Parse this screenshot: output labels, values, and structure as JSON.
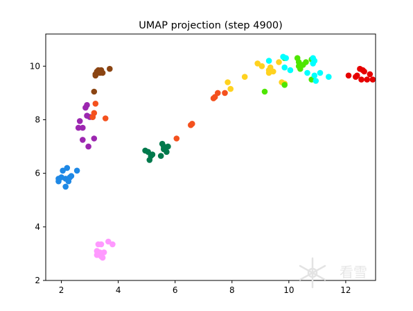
{
  "chart_data": {
    "type": "scatter",
    "title": "UMAP projection (step 4900)",
    "xlabel": "",
    "ylabel": "",
    "xlim": [
      1.45,
      13.05
    ],
    "ylim": [
      2.0,
      11.2
    ],
    "xticks": [
      2,
      4,
      6,
      8,
      10,
      12
    ],
    "yticks": [
      2,
      4,
      6,
      8,
      10
    ],
    "grid": false,
    "legend": "none",
    "series": [
      {
        "color": "#1e88e5",
        "points": [
          [
            1.9,
            5.8
          ],
          [
            1.9,
            5.7
          ],
          [
            2.05,
            6.1
          ],
          [
            2.2,
            6.2
          ],
          [
            2.0,
            5.85
          ],
          [
            2.15,
            5.8
          ],
          [
            2.3,
            5.85
          ],
          [
            2.35,
            5.9
          ],
          [
            2.55,
            6.1
          ],
          [
            2.15,
            5.5
          ],
          [
            2.25,
            5.7
          ]
        ]
      },
      {
        "color": "#9c27b0",
        "points": [
          [
            2.9,
            8.55
          ],
          [
            2.85,
            8.45
          ],
          [
            2.9,
            8.15
          ],
          [
            2.65,
            7.95
          ],
          [
            2.6,
            7.7
          ],
          [
            2.75,
            7.7
          ],
          [
            2.75,
            7.25
          ],
          [
            2.95,
            7.0
          ],
          [
            3.15,
            7.3
          ],
          [
            3.0,
            8.1
          ]
        ]
      },
      {
        "color": "#8b4513",
        "points": [
          [
            3.2,
            9.7
          ],
          [
            3.25,
            9.8
          ],
          [
            3.3,
            9.85
          ],
          [
            3.4,
            9.85
          ],
          [
            3.45,
            9.75
          ],
          [
            3.7,
            9.9
          ],
          [
            3.35,
            9.75
          ],
          [
            3.15,
            9.05
          ],
          [
            3.1,
            8.1
          ],
          [
            3.2,
            9.65
          ]
        ]
      },
      {
        "color": "#f4511e",
        "points": [
          [
            3.2,
            8.6
          ],
          [
            3.15,
            8.25
          ],
          [
            3.1,
            8.1
          ],
          [
            3.55,
            8.05
          ],
          [
            6.05,
            7.3
          ],
          [
            6.55,
            7.8
          ],
          [
            6.6,
            7.85
          ],
          [
            7.35,
            8.8
          ],
          [
            7.4,
            8.85
          ],
          [
            7.5,
            9.0
          ],
          [
            7.75,
            9.0
          ]
        ]
      },
      {
        "color": "#ff99ff",
        "points": [
          [
            3.3,
            3.35
          ],
          [
            3.4,
            3.35
          ],
          [
            3.25,
            3.1
          ],
          [
            3.35,
            3.05
          ],
          [
            3.5,
            3.05
          ],
          [
            3.25,
            2.95
          ],
          [
            3.4,
            2.9
          ],
          [
            3.45,
            2.85
          ],
          [
            3.65,
            3.45
          ],
          [
            3.8,
            3.35
          ]
        ]
      },
      {
        "color": "#00794c",
        "points": [
          [
            4.95,
            6.85
          ],
          [
            5.05,
            6.8
          ],
          [
            5.1,
            6.5
          ],
          [
            5.15,
            6.65
          ],
          [
            5.2,
            6.7
          ],
          [
            5.5,
            6.65
          ],
          [
            5.55,
            7.1
          ],
          [
            5.6,
            6.9
          ],
          [
            5.7,
            6.8
          ],
          [
            5.75,
            7.0
          ],
          [
            5.6,
            7.0
          ]
        ]
      },
      {
        "color": "#ffd21f",
        "points": [
          [
            7.85,
            9.4
          ],
          [
            7.95,
            9.15
          ],
          [
            8.45,
            9.6
          ],
          [
            8.9,
            10.1
          ],
          [
            9.05,
            10.0
          ],
          [
            9.3,
            9.85
          ],
          [
            9.3,
            9.75
          ],
          [
            9.45,
            9.8
          ],
          [
            9.35,
            9.95
          ],
          [
            9.75,
            9.4
          ],
          [
            9.85,
            9.35
          ],
          [
            9.65,
            10.15
          ]
        ]
      },
      {
        "color": "#4ee600",
        "points": [
          [
            9.15,
            9.05
          ],
          [
            9.85,
            9.3
          ],
          [
            9.85,
            10.3
          ],
          [
            10.3,
            10.3
          ],
          [
            10.35,
            10.0
          ],
          [
            10.4,
            9.9
          ],
          [
            10.35,
            10.15
          ],
          [
            10.5,
            10.05
          ],
          [
            10.6,
            10.15
          ],
          [
            10.8,
            10.25
          ],
          [
            10.8,
            9.5
          ]
        ]
      },
      {
        "color": "#00ffff",
        "points": [
          [
            9.3,
            10.2
          ],
          [
            9.8,
            10.35
          ],
          [
            9.9,
            10.3
          ],
          [
            9.85,
            9.95
          ],
          [
            10.05,
            9.85
          ],
          [
            10.85,
            10.3
          ],
          [
            10.9,
            10.2
          ],
          [
            10.65,
            9.75
          ],
          [
            10.95,
            9.45
          ],
          [
            10.9,
            9.65
          ],
          [
            11.1,
            9.75
          ],
          [
            11.4,
            9.6
          ],
          [
            10.85,
            10.1
          ]
        ]
      },
      {
        "color": "#e60000",
        "points": [
          [
            12.1,
            9.65
          ],
          [
            12.35,
            9.6
          ],
          [
            12.4,
            9.65
          ],
          [
            12.5,
            9.9
          ],
          [
            12.6,
            9.85
          ],
          [
            12.55,
            9.5
          ],
          [
            12.75,
            9.5
          ],
          [
            12.85,
            9.7
          ],
          [
            12.95,
            9.5
          ],
          [
            12.65,
            9.8
          ]
        ]
      }
    ]
  },
  "watermark": {
    "text": "看雪",
    "color": "#e6e6e6"
  }
}
